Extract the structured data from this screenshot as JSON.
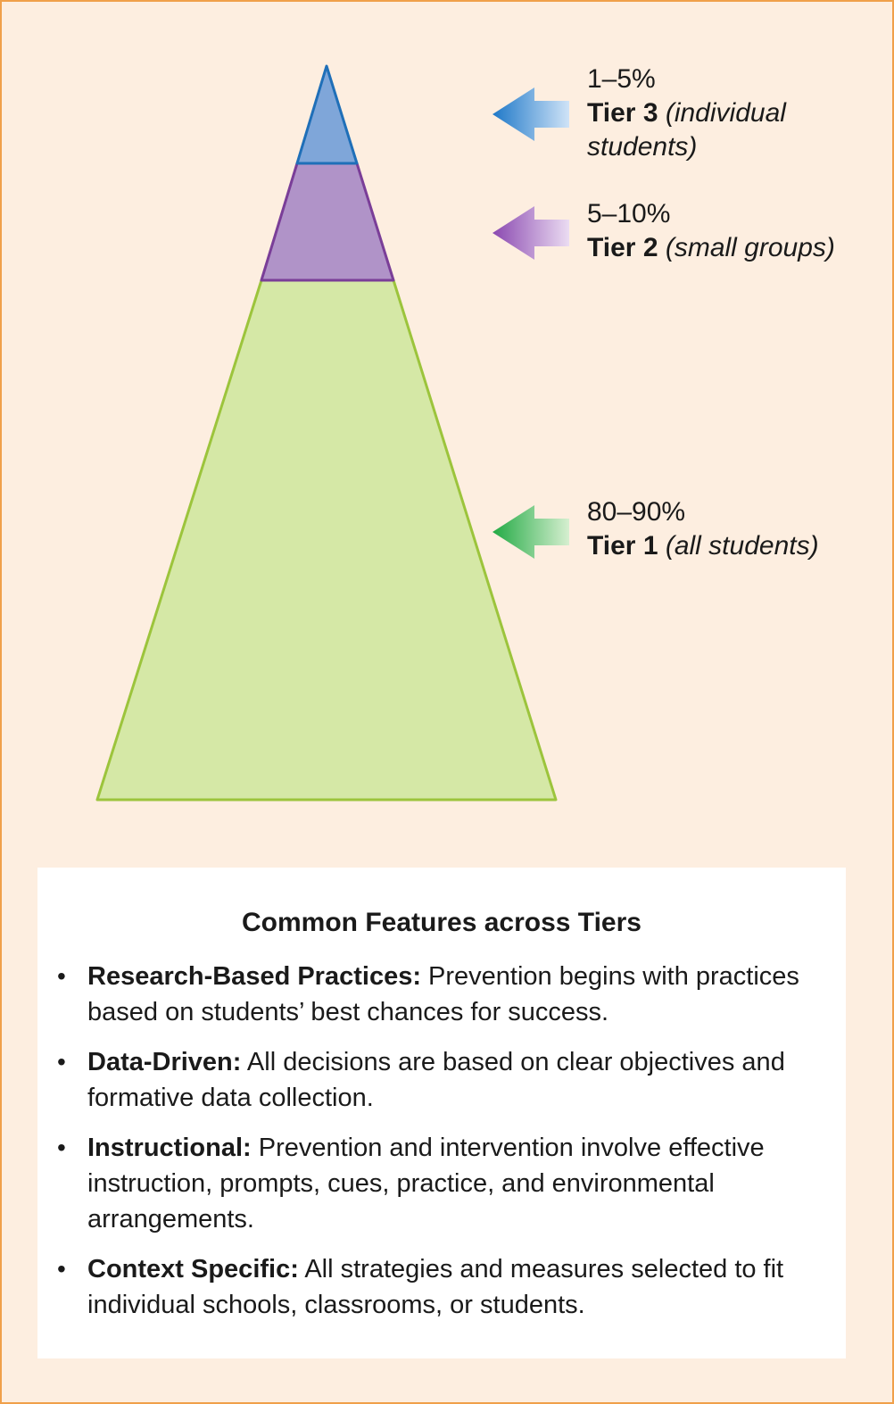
{
  "tiers": [
    {
      "percent": "1–5%",
      "name": "Tier 3",
      "description": "(individual students)",
      "color": "#7fa6d9",
      "stroke": "#1f6fb8",
      "arrow_color": "#1e78c8"
    },
    {
      "percent": "5–10%",
      "name": "Tier 2",
      "description": "(small groups)",
      "color": "#b093c8",
      "stroke": "#7a3e98",
      "arrow_color": "#8a48b0"
    },
    {
      "percent": "80–90%",
      "name": "Tier 1",
      "description": "(all students)",
      "color": "#d5e8a6",
      "stroke": "#9cc43c",
      "arrow_color": "#22aa44"
    }
  ],
  "features": {
    "title": "Common Features across Tiers",
    "items": [
      {
        "term": "Research-Based Practices:",
        "text": "Prevention begins with practices based on students’ best chances for success."
      },
      {
        "term": "Data-Driven:",
        "text": "All decisions are based on clear objectives and formative data collection."
      },
      {
        "term": "Instructional:",
        "text": "Prevention and intervention involve effective instruction, prompts, cues, practice, and environmental arrangements."
      },
      {
        "term": "Context Specific:",
        "text": "All strategies and measures selected to fit individual schools, classrooms, or students."
      }
    ]
  }
}
